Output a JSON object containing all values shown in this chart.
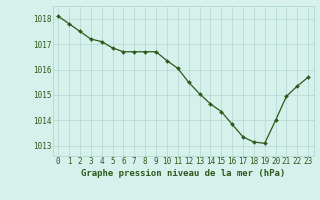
{
  "x": [
    0,
    1,
    2,
    3,
    4,
    5,
    6,
    7,
    8,
    9,
    10,
    11,
    12,
    13,
    14,
    15,
    16,
    17,
    18,
    19,
    20,
    21,
    22,
    23
  ],
  "y": [
    1018.1,
    1017.8,
    1017.5,
    1017.2,
    1017.1,
    1016.85,
    1016.7,
    1016.7,
    1016.7,
    1016.7,
    1016.35,
    1016.05,
    1015.5,
    1015.05,
    1014.65,
    1014.35,
    1013.85,
    1013.35,
    1013.15,
    1013.1,
    1014.0,
    1014.95,
    1015.35,
    1015.7
  ],
  "line_color": "#2d5a1b",
  "marker_color": "#2d5a1b",
  "bg_color": "#d6f0ec",
  "grid_color": "#b0d8d0",
  "label": "Graphe pression niveau de la mer (hPa)",
  "yticks": [
    1013,
    1014,
    1015,
    1016,
    1017,
    1018
  ],
  "xticks": [
    0,
    1,
    2,
    3,
    4,
    5,
    6,
    7,
    8,
    9,
    10,
    11,
    12,
    13,
    14,
    15,
    16,
    17,
    18,
    19,
    20,
    21,
    22,
    23
  ],
  "ylim": [
    1012.6,
    1018.5
  ],
  "xlim": [
    -0.5,
    23.5
  ],
  "tick_fontsize": 5.5,
  "label_fontsize": 6.5
}
